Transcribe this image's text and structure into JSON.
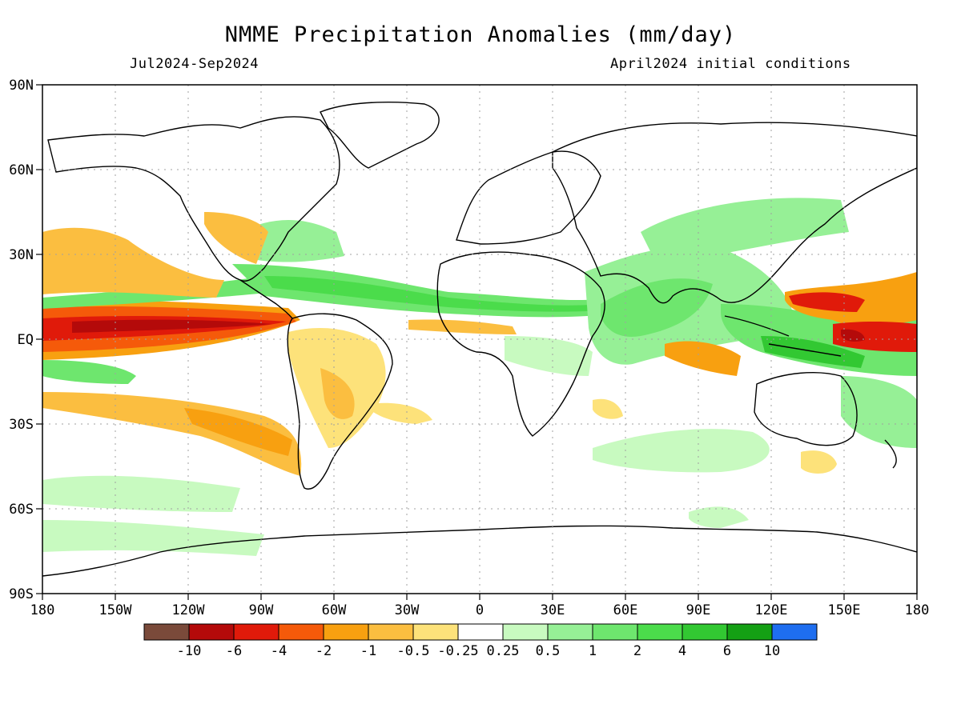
{
  "title": "NMME Precipitation Anomalies (mm/day)",
  "period": "Jul2024-Sep2024",
  "init": "April2024 initial conditions",
  "lat_labels": [
    "90N",
    "60N",
    "30N",
    "EQ",
    "30S",
    "60S",
    "90S"
  ],
  "lon_labels": [
    "180",
    "150W",
    "120W",
    "90W",
    "60W",
    "30W",
    "0",
    "30E",
    "60E",
    "90E",
    "120E",
    "150E",
    "180"
  ],
  "colorbar": {
    "labels": [
      "-10",
      "-6",
      "-4",
      "-2",
      "-1",
      "-0.5",
      "-0.25",
      "0.25",
      "0.5",
      "1",
      "2",
      "4",
      "6",
      "10"
    ],
    "colors": [
      "#7a4a3a",
      "#b40a0a",
      "#e01a0a",
      "#f55a0a",
      "#f8a010",
      "#fbbe40",
      "#fde27a",
      "#ffffff",
      "#c8fac0",
      "#96f096",
      "#6ee66e",
      "#4bdc4b",
      "#32c832",
      "#14a014",
      "#1e6ef0"
    ]
  },
  "colors": {
    "frame": "#000000",
    "grid": "#a0a0a0"
  }
}
